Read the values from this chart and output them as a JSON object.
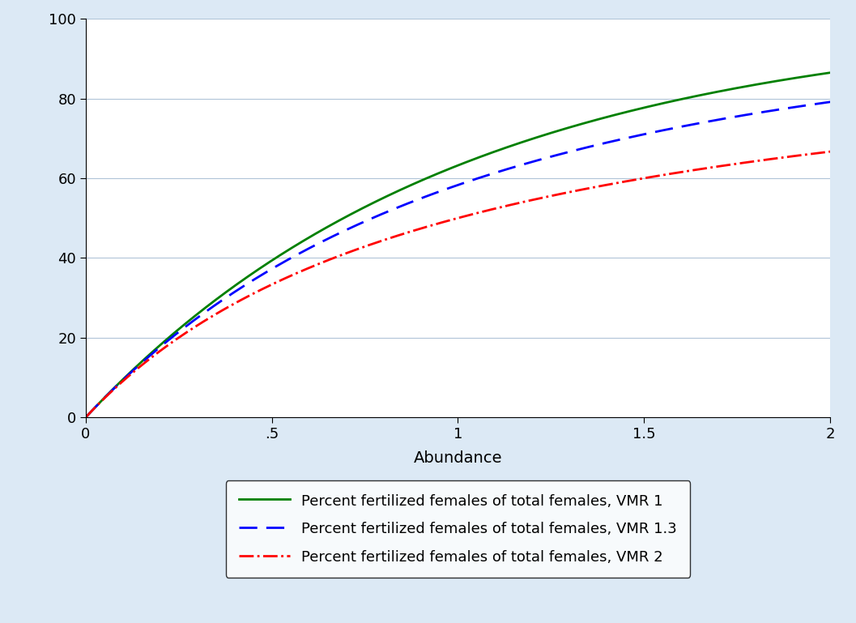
{
  "title": "",
  "xlabel": "Abundance",
  "ylabel": "",
  "xlim": [
    0,
    2
  ],
  "ylim": [
    0,
    100
  ],
  "xticks": [
    0,
    0.5,
    1,
    1.5,
    2
  ],
  "xtick_labels": [
    "0",
    ".5",
    "1",
    "1.5",
    "2"
  ],
  "yticks": [
    0,
    20,
    40,
    60,
    80,
    100
  ],
  "background_color": "#dce9f5",
  "plot_bg_color": "#ffffff",
  "grid_color": "#b0c4d8",
  "line1_color": "#008000",
  "line1_style": "solid",
  "line1_label": "Percent fertilized females of total females, VMR 1",
  "line2_color": "#0000ff",
  "line2_style": "dashed",
  "line2_label": "Percent fertilized females of total females, VMR 1.3",
  "line3_color": "#ff0000",
  "line3_style": "dashdot",
  "line3_label": "Percent fertilized females of total females, VMR 2",
  "vmr1": 1.0,
  "vmr2": 1.3,
  "vmr3": 2.0,
  "line_width": 2.0
}
